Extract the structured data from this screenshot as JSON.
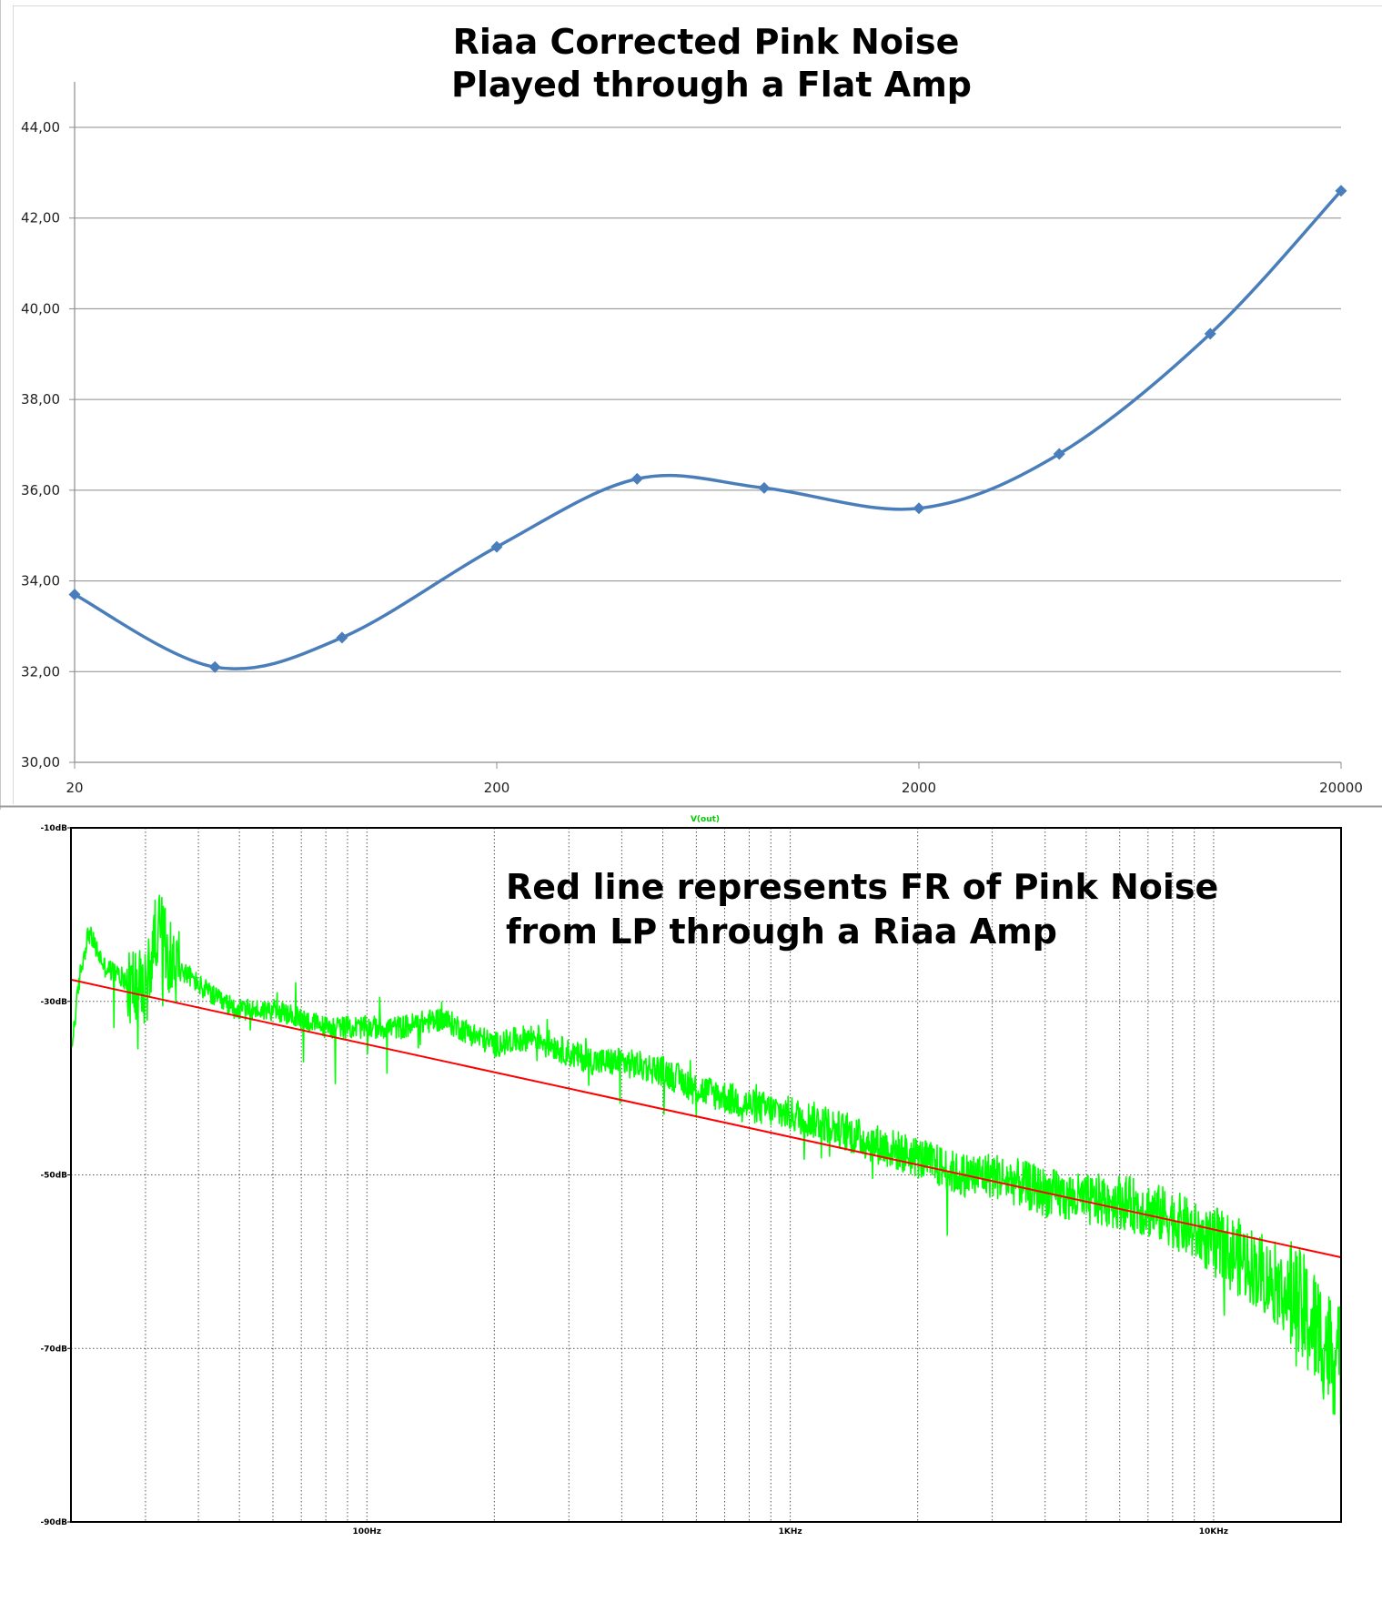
{
  "chart_data": [
    {
      "type": "line",
      "title_lines": [
        "Riaa Corrected Pink Noise",
        "Played through a Flat Amp"
      ],
      "x_scale": "log",
      "x_ticks": [
        20,
        200,
        2000,
        20000
      ],
      "x_tick_labels": [
        "20",
        "200",
        "2000",
        "20000"
      ],
      "ylim": [
        30,
        44
      ],
      "y_ticks": [
        30,
        32,
        34,
        36,
        38,
        40,
        42,
        44
      ],
      "y_tick_labels": [
        "30,00",
        "32,00",
        "34,00",
        "36,00",
        "38,00",
        "40,00",
        "42,00",
        "44,00"
      ],
      "grid": true,
      "series": [
        {
          "color": "#4a7ebb",
          "marker": "diamond",
          "x": [
            20,
            43,
            86,
            200,
            430,
            860,
            2000,
            4300,
            9800,
            20000
          ],
          "y": [
            33.7,
            32.1,
            32.75,
            34.75,
            36.25,
            36.05,
            35.6,
            36.8,
            39.45,
            42.6
          ]
        }
      ]
    },
    {
      "type": "line",
      "trace_label": "V(out)",
      "annotation_lines": [
        "Red line represents FR of Pink Noise",
        "from LP through a Riaa Amp"
      ],
      "x_scale": "log",
      "xlim": [
        20,
        20000
      ],
      "x_tick_labels": [
        {
          "value": 100,
          "label": "100Hz"
        },
        {
          "value": 1000,
          "label": "1KHz"
        },
        {
          "value": 10000,
          "label": "10KHz"
        }
      ],
      "ylim": [
        -90,
        -10
      ],
      "y_tick_labels": [
        {
          "value": -10,
          "label": "-10dB"
        },
        {
          "value": -30,
          "label": "-30dB"
        },
        {
          "value": -50,
          "label": "-50dB"
        },
        {
          "value": -70,
          "label": "-70dB"
        },
        {
          "value": -90,
          "label": "-90dB"
        }
      ],
      "grid": true,
      "series": [
        {
          "color": "#00ff00",
          "x": [
            20,
            21,
            22,
            24,
            26,
            28,
            30,
            32,
            35,
            38,
            40,
            45,
            50,
            60,
            70,
            80,
            100,
            120,
            150,
            200,
            250,
            300,
            350,
            400,
            500,
            600,
            700,
            800,
            1000,
            1200,
            1500,
            2000,
            2500,
            3000,
            3500,
            4000,
            5000,
            6000,
            7000,
            8000,
            10000,
            12000,
            15000,
            17000,
            20000
          ],
          "y": [
            -36,
            -27,
            -22,
            -26,
            -27,
            -28,
            -29,
            -21,
            -26,
            -27,
            -28,
            -30,
            -31,
            -31,
            -32,
            -33,
            -33,
            -33,
            -32,
            -35,
            -34,
            -36,
            -37,
            -37,
            -38,
            -40,
            -41,
            -42,
            -43,
            -44,
            -46,
            -48,
            -50,
            -50,
            -51,
            -52,
            -53,
            -53,
            -54,
            -55,
            -58,
            -60,
            -64,
            -67,
            -72
          ]
        },
        {
          "color": "#ff0000",
          "x": [
            20,
            20000
          ],
          "y": [
            -27.5,
            -59.5
          ]
        }
      ]
    }
  ]
}
